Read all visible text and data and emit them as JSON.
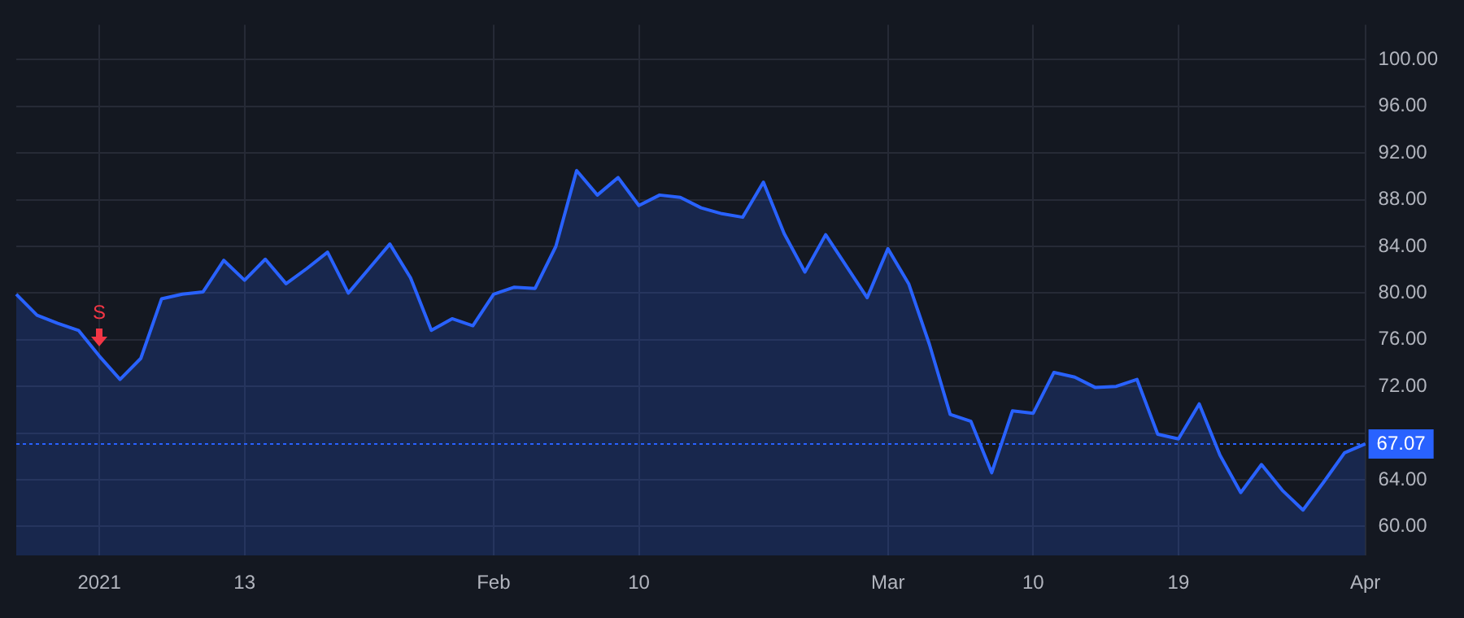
{
  "chart_data": {
    "type": "area",
    "categories": [
      null,
      null,
      null,
      null,
      "2021",
      null,
      null,
      null,
      null,
      null,
      null,
      "13",
      null,
      null,
      null,
      null,
      null,
      null,
      null,
      null,
      null,
      null,
      null,
      "Feb",
      null,
      null,
      null,
      null,
      null,
      null,
      "10",
      null,
      null,
      null,
      null,
      null,
      null,
      null,
      null,
      null,
      null,
      null,
      "Mar",
      null,
      null,
      null,
      null,
      null,
      null,
      "10",
      null,
      null,
      null,
      null,
      null,
      null,
      "19",
      null,
      null,
      null,
      null,
      null,
      null,
      null,
      null,
      "Apr"
    ],
    "series": [
      {
        "color": "#2962ff",
        "values": [
          79.9,
          78.1,
          77.4,
          76.8,
          74.6,
          72.6,
          74.4,
          79.5,
          79.9,
          80.1,
          82.8,
          81.1,
          82.9,
          80.8,
          82.1,
          83.5,
          80.0,
          82.1,
          84.2,
          81.3,
          76.8,
          77.8,
          77.2,
          79.9,
          80.5,
          80.4,
          84.0,
          90.5,
          88.4,
          89.9,
          87.5,
          88.4,
          88.2,
          87.3,
          86.8,
          86.5,
          89.5,
          85.1,
          81.8,
          85.0,
          82.3,
          79.6,
          83.8,
          80.8,
          75.6,
          69.6,
          69.0,
          64.6,
          69.9,
          69.7,
          73.2,
          72.8,
          71.9,
          72.0,
          72.6,
          67.9,
          67.5,
          70.5,
          66.1,
          62.9,
          65.3,
          63.1,
          61.4,
          63.8,
          66.3,
          67.07
        ]
      }
    ],
    "ylim": [
      57.5,
      103
    ],
    "yticks": [
      {
        "value": 60,
        "label": "60.00"
      },
      {
        "value": 64,
        "label": "64.00"
      },
      {
        "value": 68,
        "label": null
      },
      {
        "value": 72,
        "label": "72.00"
      },
      {
        "value": 76,
        "label": "76.00"
      },
      {
        "value": 80,
        "label": "80.00"
      },
      {
        "value": 84,
        "label": "84.00"
      },
      {
        "value": 88,
        "label": "88.00"
      },
      {
        "value": 92,
        "label": "92.00"
      },
      {
        "value": 96,
        "label": "96.00"
      },
      {
        "value": 100,
        "label": "100.00"
      }
    ],
    "ref_lines": [
      {
        "axis": "y",
        "value": 67.07,
        "label": "67.07",
        "color": "#2962ff",
        "line_style": "dotted"
      }
    ],
    "annotations": [
      {
        "text": "S",
        "x": "2021",
        "y": 74.6
      }
    ],
    "grid": true
  }
}
